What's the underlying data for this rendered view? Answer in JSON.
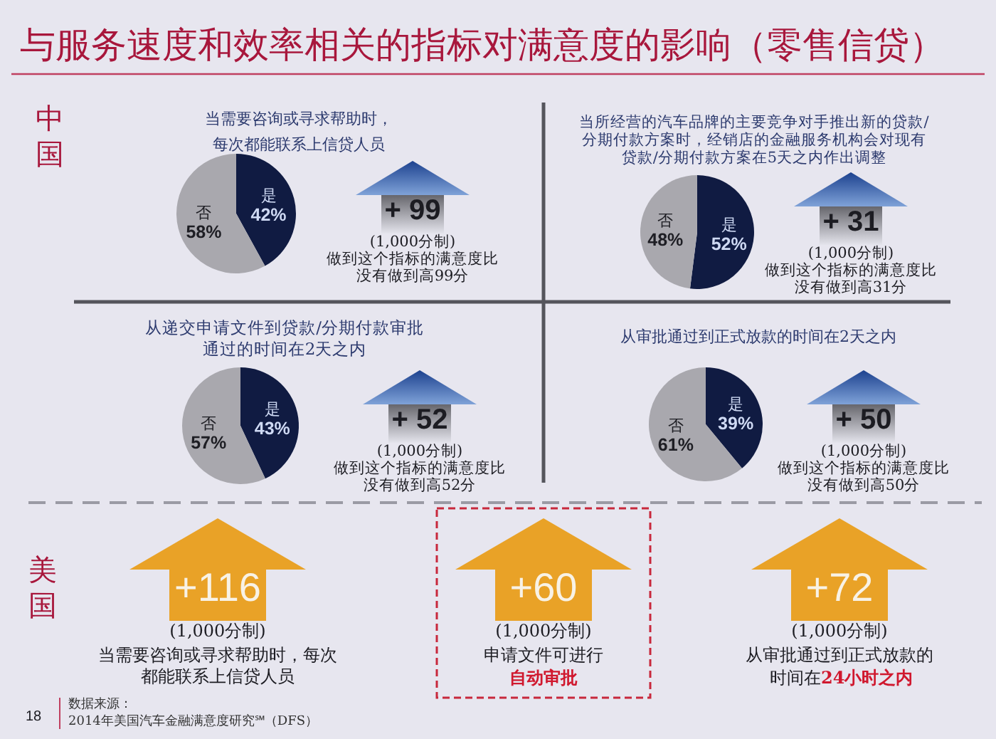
{
  "chart_data": [
    {
      "type": "other",
      "title": "与服务速度和效率相关的指标对满意度的影响（零售信贷）",
      "annotations": [
        "中国"
      ]
    },
    {
      "type": "pie",
      "title": "当需要咨询或寻求帮助时，每次都能联系上信贷人员",
      "categories": [
        "是",
        "否"
      ],
      "values": [
        42,
        58
      ],
      "colors": [
        "#101b42",
        "#a9a8ae"
      ],
      "value_labels": [
        "42%",
        "58%"
      ],
      "annotations": [
        "+ 99",
        "(1,000分制)",
        "做到这个指标的满意度比没有做到高99分"
      ]
    },
    {
      "type": "pie",
      "title": "当所经营的汽车品牌的主要竞争对手推出新的贷款/分期付款方案时，经销店的金融服务机构会对现有贷款/分期付款方案在5天之内作出调整",
      "categories": [
        "是",
        "否"
      ],
      "values": [
        52,
        48
      ],
      "colors": [
        "#101b42",
        "#a9a8ae"
      ],
      "value_labels": [
        "52%",
        "48%"
      ],
      "annotations": [
        "+ 31",
        "(1,000分制)",
        "做到这个指标的满意度比没有做到高31分"
      ]
    },
    {
      "type": "pie",
      "title": "从递交申请文件到贷款/分期付款审批通过的时间在2天之内",
      "categories": [
        "是",
        "否"
      ],
      "values": [
        43,
        57
      ],
      "colors": [
        "#101b42",
        "#a9a8ae"
      ],
      "value_labels": [
        "43%",
        "57%"
      ],
      "annotations": [
        "+ 52",
        "(1,000分制)",
        "做到这个指标的满意度比没有做到高52分"
      ]
    },
    {
      "type": "pie",
      "title": "从审批通过到正式放款的时间在2天之内",
      "categories": [
        "是",
        "否"
      ],
      "values": [
        39,
        61
      ],
      "colors": [
        "#101b42",
        "#a9a8ae"
      ],
      "value_labels": [
        "39%",
        "61%"
      ],
      "annotations": [
        "+ 50",
        "(1,000分制)",
        "做到这个指标的满意度比没有做到高50分"
      ]
    },
    {
      "type": "other",
      "title": "美国",
      "annotations": [
        "+116",
        "(1,000分制)",
        "当需要咨询或寻求帮助时，每次都能联系上信贷人员",
        "+60",
        "(1,000分制)",
        "申请文件可进行",
        "自动审批",
        "+72",
        "(1,000分制)",
        "从审批通过到正式放款的",
        "时间在",
        "24小时之内",
        "18",
        "数据来源：",
        "2014年美国汽车金融满意度研究℠（DFS）"
      ]
    }
  ]
}
